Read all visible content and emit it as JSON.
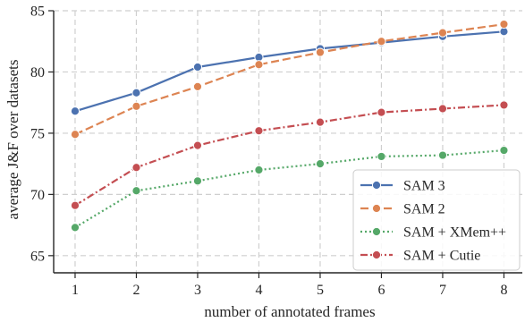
{
  "chart_data": {
    "type": "line",
    "xlabel": "number of annotated frames",
    "ylabel": "average J&F over datasets",
    "x": [
      1,
      2,
      3,
      4,
      5,
      6,
      7,
      8
    ],
    "xlim": [
      0.65,
      8.3
    ],
    "ylim": [
      63.6,
      85.0
    ],
    "xticks": [
      "1",
      "2",
      "3",
      "4",
      "5",
      "6",
      "7",
      "8"
    ],
    "yticks": [
      "65",
      "70",
      "75",
      "80",
      "85"
    ],
    "grid": true,
    "legend_position": "bottom-right",
    "series": [
      {
        "name": "SAM 3",
        "color": "#4c72b0",
        "dash": "solid",
        "values": [
          76.8,
          78.3,
          80.4,
          81.2,
          81.9,
          82.4,
          82.9,
          83.3
        ]
      },
      {
        "name": "SAM 2",
        "color": "#dd8452",
        "dash": "dashed",
        "values": [
          74.9,
          77.2,
          78.8,
          80.6,
          81.6,
          82.5,
          83.2,
          83.9
        ]
      },
      {
        "name": "SAM + XMem++",
        "color": "#55a868",
        "dash": "dotted",
        "values": [
          67.3,
          70.3,
          71.1,
          72.0,
          72.5,
          73.1,
          73.2,
          73.6
        ]
      },
      {
        "name": "SAM + Cutie",
        "color": "#c44e52",
        "dash": "dashdot",
        "values": [
          69.1,
          72.2,
          74.0,
          75.2,
          75.9,
          76.7,
          77.0,
          77.3
        ]
      }
    ]
  }
}
